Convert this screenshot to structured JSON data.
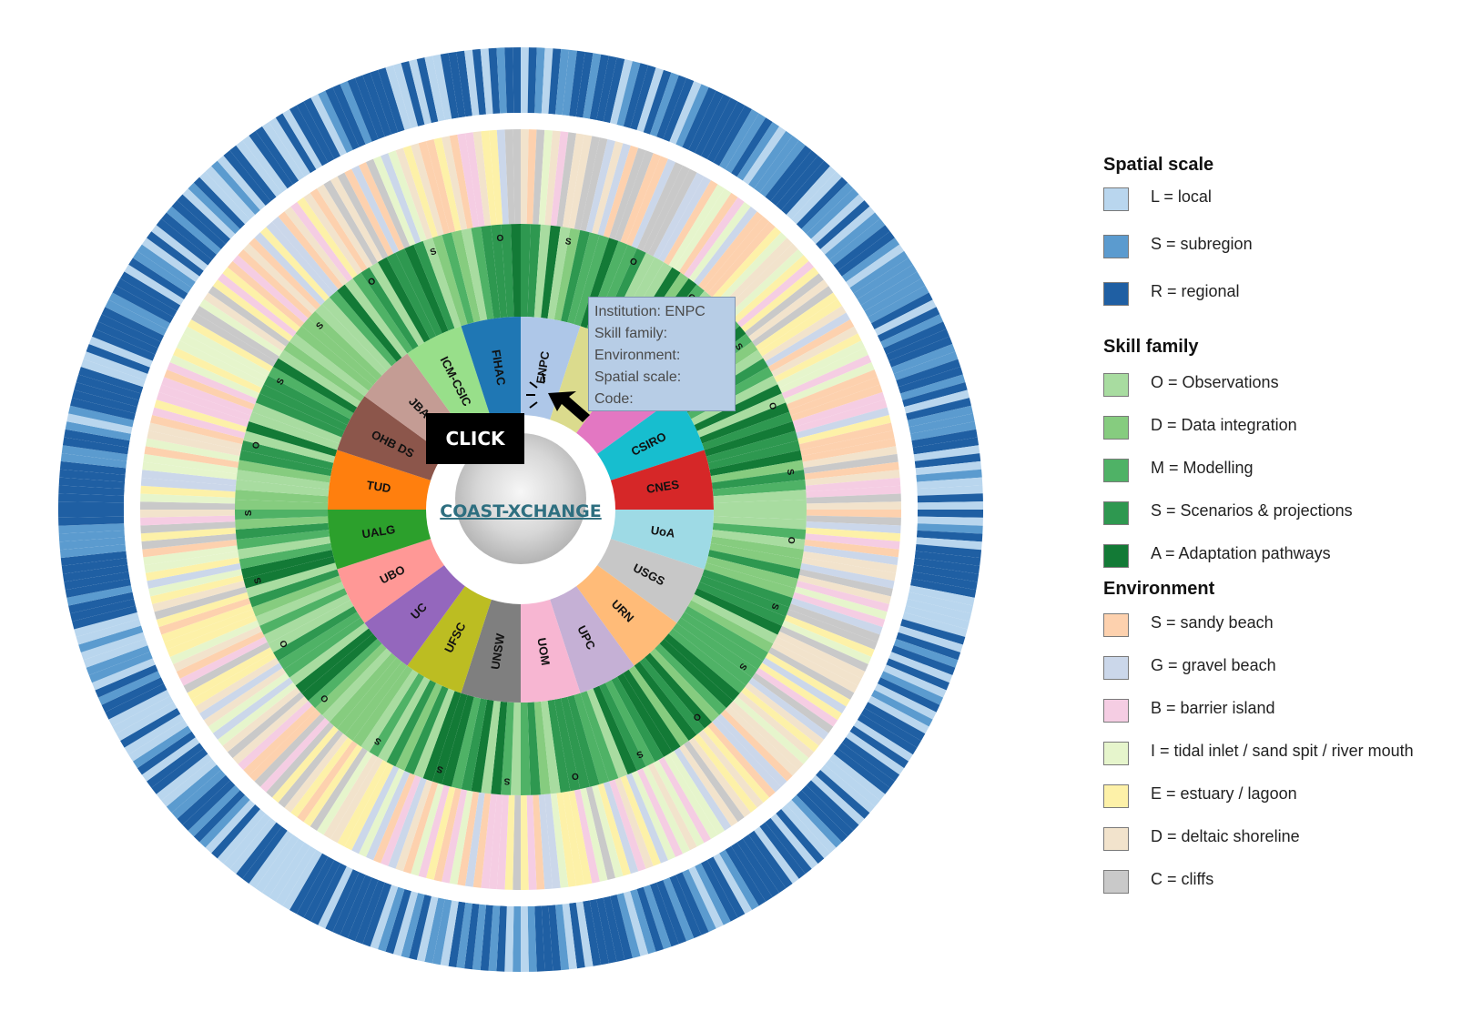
{
  "logo": {
    "text": "COAST-XCHANGE"
  },
  "institutions": [
    {
      "label": "ENPC",
      "color": "#aec7e8"
    },
    {
      "label": "",
      "color": "#dbdb8d"
    },
    {
      "label": "",
      "color": "#e377c2"
    },
    {
      "label": "CSIRO",
      "color": "#17becf"
    },
    {
      "label": "CNES",
      "color": "#d62728"
    },
    {
      "label": "UoA",
      "color": "#9edae5"
    },
    {
      "label": "USGS",
      "color": "#c7c7c7"
    },
    {
      "label": "URN",
      "color": "#ffbb78"
    },
    {
      "label": "UPC",
      "color": "#c5b0d5"
    },
    {
      "label": "UOM",
      "color": "#f7b6d2"
    },
    {
      "label": "UNSW",
      "color": "#7f7f7f"
    },
    {
      "label": "UFSC",
      "color": "#bcbd22"
    },
    {
      "label": "UC",
      "color": "#9467bd"
    },
    {
      "label": "UBO",
      "color": "#ff9896"
    },
    {
      "label": "UALG",
      "color": "#2ca02c"
    },
    {
      "label": "TUD",
      "color": "#ff7f0e"
    },
    {
      "label": "OHB DS",
      "color": "#8c564b"
    },
    {
      "label": "JBA",
      "color": "#c49c94"
    },
    {
      "label": "ICM-CSIC",
      "color": "#98df8a"
    },
    {
      "label": "FIHAC",
      "color": "#1f77b4"
    }
  ],
  "skill_ring_letters": [
    "S",
    "O",
    "O",
    "S",
    "O",
    "S",
    "O",
    "S",
    "S",
    "O",
    "S",
    "O",
    "S",
    "S",
    "S",
    "O",
    "O",
    "S",
    "S",
    "O",
    "S",
    "S",
    "O",
    "S",
    "O"
  ],
  "tooltip": {
    "institution": "Institution: ENPC",
    "skill_family": "Skill family:",
    "environment": "Environment:",
    "spatial_scale": "Spatial scale:",
    "code": "Code:"
  },
  "click_badge": "CLICK",
  "legend": {
    "spatial_scale": {
      "title": "Spatial scale",
      "items": [
        {
          "label": "L = local",
          "color": "#b9d6ee"
        },
        {
          "label": "S = subregion",
          "color": "#5b9bcf"
        },
        {
          "label": "R = regional",
          "color": "#1f5fa3"
        }
      ]
    },
    "skill_family": {
      "title": "Skill family",
      "items": [
        {
          "label": "O = Observations",
          "color": "#a8dca0"
        },
        {
          "label": "D = Data integration",
          "color": "#86cc7f"
        },
        {
          "label": "M = Modelling",
          "color": "#4fb266"
        },
        {
          "label": "S = Scenarios & projections",
          "color": "#2e9850"
        },
        {
          "label": "A = Adaptation pathways",
          "color": "#137a36"
        }
      ]
    },
    "environment": {
      "title": "Environment",
      "items": [
        {
          "label": "S = sandy beach",
          "color": "#fdd1ae"
        },
        {
          "label": "G = gravel beach",
          "color": "#cbd7ea"
        },
        {
          "label": "B = barrier island",
          "color": "#f5cde3"
        },
        {
          "label": "I = tidal inlet / sand spit / river mouth",
          "color": "#e6f5cc"
        },
        {
          "label": "E = estuary / lagoon",
          "color": "#fdf1a8"
        },
        {
          "label": "D = deltaic shoreline",
          "color": "#f2e3cc"
        },
        {
          "label": "C = cliffs",
          "color": "#c9c9c9"
        }
      ]
    }
  }
}
